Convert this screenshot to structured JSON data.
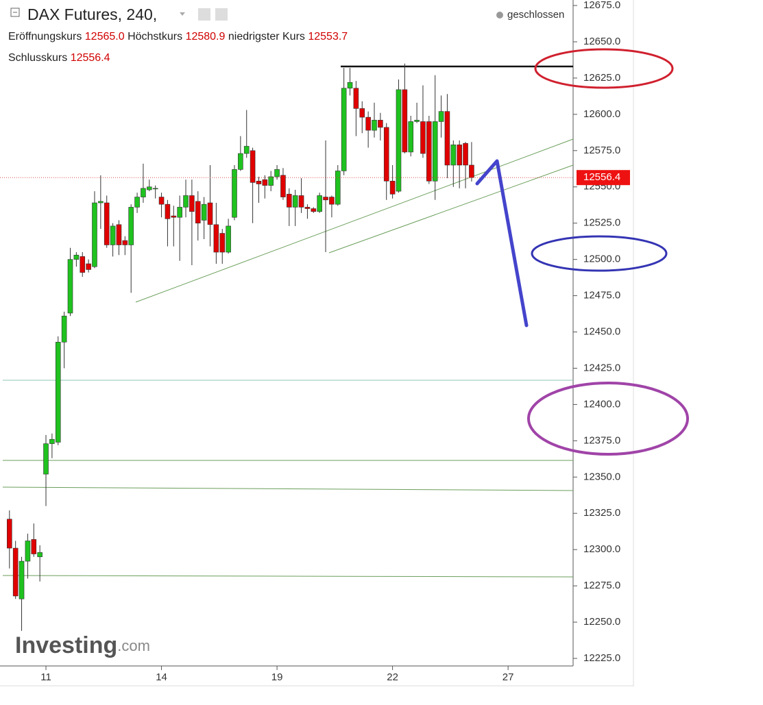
{
  "header": {
    "title": "DAX Futures, 240,",
    "status": "geschlossen",
    "open_label": "Eröffnungskurs",
    "open": "12565.0",
    "high_label": "Höchstkurs",
    "high": "12580.9",
    "low_label": "niedrigster Kurs",
    "low": "12553.7",
    "close_label": "Schlusskurs",
    "close": "12556.4",
    "watermark": "Investing",
    "watermark_suffix": ".com"
  },
  "chart_data": {
    "type": "candlestick",
    "categories": [
      null,
      null,
      null,
      null,
      null,
      null,
      "11",
      null,
      null,
      null,
      null,
      null,
      null,
      null,
      null,
      null,
      null,
      null,
      null,
      null,
      null,
      null,
      null,
      null,
      null,
      "14",
      null,
      null,
      null,
      null,
      null,
      null,
      null,
      null,
      null,
      null,
      null,
      null,
      null,
      null,
      null,
      null,
      null,
      null,
      "19",
      null,
      null,
      null,
      null,
      null,
      null,
      null,
      null,
      null,
      null,
      null,
      null,
      null,
      null,
      null,
      null,
      null,
      null,
      "22",
      null,
      null,
      null,
      null,
      null,
      null,
      null,
      null,
      null,
      null,
      null,
      null,
      null,
      null,
      null,
      null,
      null,
      null,
      "27"
    ],
    "open": [
      12321,
      12301,
      12266,
      12292,
      12307,
      12295,
      12352,
      12373,
      12374,
      12443,
      12463,
      12500,
      12502,
      12497,
      12495,
      12539,
      12539,
      12510,
      12524,
      12513,
      12510,
      12536,
      12543,
      12548,
      12549,
      12543,
      12538,
      12530,
      12529,
      12536,
      12544,
      12540,
      12527,
      12539,
      12524,
      12518,
      12505,
      12529,
      12562,
      12573,
      12575,
      12554,
      12555,
      12551,
      12557,
      12558,
      12545,
      12536,
      12544,
      12536,
      12535,
      12533,
      12543,
      12543,
      12538,
      12561,
      12618,
      12618,
      12604,
      12598,
      12589,
      12596,
      12591,
      12554,
      12547,
      12617,
      12574,
      12595,
      12595,
      12595,
      12554,
      12595,
      12602,
      12565,
      12579,
      12580,
      12565.0,
      null,
      null,
      null,
      null,
      null,
      null
    ],
    "high": [
      12327,
      12306,
      12295,
      12311,
      12318,
      12303,
      12379,
      12380,
      12447,
      12464,
      12508,
      12505,
      12505,
      12500,
      12547,
      12558,
      12544,
      12525,
      12527,
      12516,
      12538,
      12546,
      12566,
      12555,
      12551,
      12546,
      12541,
      12537,
      12544,
      12555,
      12555,
      12547,
      12543,
      12565,
      12539,
      12521,
      12528,
      12565,
      12585,
      12603,
      12577,
      12557,
      12558,
      12561,
      12565,
      12563,
      12549,
      12548,
      12556,
      12538,
      12536,
      12546,
      12582,
      12544,
      12565,
      12632,
      12632,
      12623,
      12609,
      12602,
      12608,
      12601,
      12594,
      12565,
      12624,
      12635,
      12599,
      12608,
      12620,
      12599,
      12627,
      12613,
      12614,
      12582,
      12582,
      12581,
      12580.9,
      null,
      null,
      null,
      null,
      null,
      null
    ],
    "low": [
      12287,
      12266,
      12244,
      12280,
      12295,
      12278,
      12330,
      12363,
      12372,
      12425,
      12461,
      12495,
      12488,
      12491,
      12494,
      12521,
      12508,
      12502,
      12503,
      12503,
      12477,
      12532,
      12539,
      12547,
      12542,
      12529,
      12509,
      12509,
      12499,
      12529,
      12496,
      12513,
      12514,
      12509,
      12497,
      12497,
      12504,
      12527,
      12561,
      12570,
      12525,
      12539,
      12542,
      12547,
      12555,
      12541,
      12523,
      12523,
      12532,
      12528,
      12532,
      12532,
      12505,
      12529,
      12537,
      12558,
      12613,
      12585,
      12587,
      12577,
      12584,
      12582,
      12541,
      12542,
      12546,
      12573,
      12571,
      12594,
      12570,
      12552,
      12541,
      12584,
      12556,
      12550,
      12549,
      12549,
      12553.7,
      null,
      null,
      null,
      null,
      null,
      null
    ],
    "close": [
      12301,
      12268,
      12292,
      12306,
      12297,
      12298,
      12373,
      12376,
      12443,
      12461,
      12500,
      12503,
      12491,
      12493,
      12539,
      12540,
      12510,
      12523,
      12510,
      12510,
      12536,
      12543,
      12549,
      12550,
      12549,
      12538,
      12528,
      12529,
      12536,
      12544,
      12533,
      12525,
      12538,
      12524,
      12505,
      12505,
      12523,
      12562,
      12573,
      12578,
      12553,
      12552,
      12551,
      12557,
      12562,
      12543,
      12536,
      12544,
      12536,
      12535,
      12533,
      12544,
      12541,
      12538,
      12561,
      12618,
      12622,
      12604,
      12598,
      12589,
      12596,
      12591,
      12554,
      12545,
      12617,
      12574,
      12595,
      12596,
      12573,
      12554,
      12595,
      12602,
      12565,
      12579,
      12565,
      12565,
      12556.4,
      null,
      null,
      null,
      null,
      null,
      null
    ],
    "up_color": "#1fc21f",
    "down_color": "#e00000",
    "last_price": 12556.4,
    "ylim": [
      12219.8,
      12678.8
    ],
    "yticks": [
      {
        "value": 12225,
        "label": "12225.0"
      },
      {
        "value": 12250,
        "label": "12250.0"
      },
      {
        "value": 12275,
        "label": "12275.0"
      },
      {
        "value": 12300,
        "label": "12300.0"
      },
      {
        "value": 12325,
        "label": "12325.0"
      },
      {
        "value": 12350,
        "label": "12350.0"
      },
      {
        "value": 12375,
        "label": "12375.0"
      },
      {
        "value": 12400,
        "label": "12400.0"
      },
      {
        "value": 12425,
        "label": "12425.0"
      },
      {
        "value": 12450,
        "label": "12450.0"
      },
      {
        "value": 12475,
        "label": "12475.0"
      },
      {
        "value": 12500,
        "label": "12500.0"
      },
      {
        "value": 12525,
        "label": "12525.0"
      },
      {
        "value": 12550,
        "label": "12550.0"
      },
      {
        "value": 12575,
        "label": "12575.0"
      },
      {
        "value": 12600,
        "label": "12600.0"
      },
      {
        "value": 12625,
        "label": "12625.0"
      },
      {
        "value": 12650,
        "label": "12650.0"
      },
      {
        "value": 12675,
        "label": "12675.0"
      }
    ],
    "grid": false
  }
}
